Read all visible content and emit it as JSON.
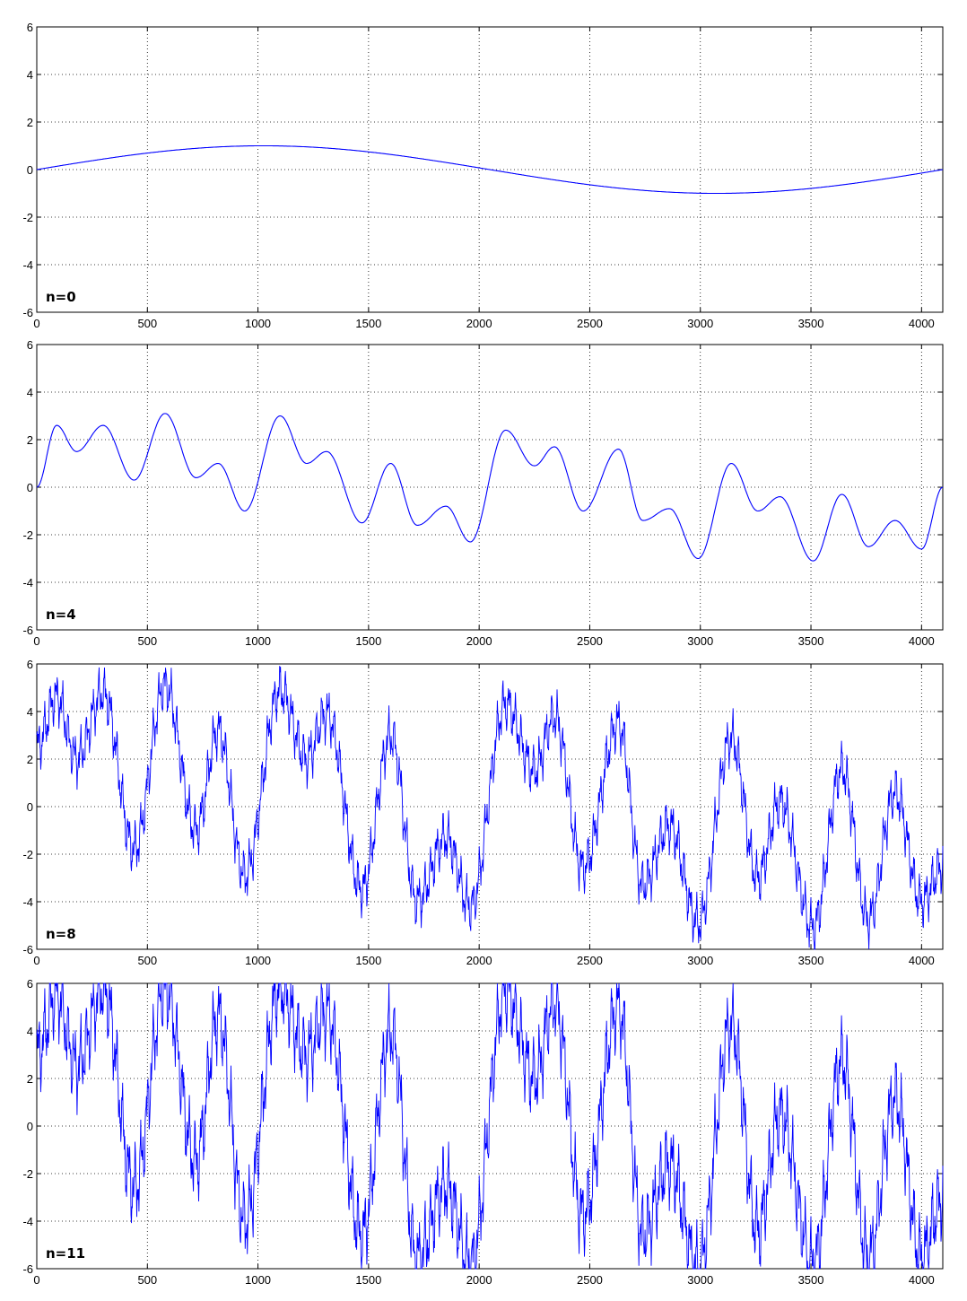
{
  "colors": {
    "series": "#0000ff",
    "axes": "#000000",
    "grid": "#000000",
    "background": "#ffffff"
  },
  "chart_data": [
    {
      "type": "line",
      "label": "n=0",
      "xlim": [
        0,
        4096
      ],
      "ylim": [
        -6,
        6
      ],
      "xticks": [
        0,
        500,
        1000,
        1500,
        2000,
        2500,
        3000,
        3500,
        4000
      ],
      "yticks": [
        -6,
        -4,
        -2,
        0,
        2,
        4,
        6
      ],
      "grid": true,
      "series": [
        {
          "x": [
            0,
            256,
            512,
            768,
            1024,
            1280,
            1536,
            1792,
            2048,
            2304,
            2560,
            2816,
            3072,
            3328,
            3584,
            3840,
            4096
          ],
          "y": [
            0,
            0.38,
            0.71,
            0.92,
            1.0,
            0.92,
            0.71,
            0.38,
            0,
            -0.38,
            -0.71,
            -0.92,
            -1.0,
            -0.92,
            -0.71,
            -0.38,
            0
          ]
        }
      ]
    },
    {
      "type": "line",
      "label": "n=4",
      "xlim": [
        0,
        4096
      ],
      "ylim": [
        -6,
        6
      ],
      "xticks": [
        0,
        500,
        1000,
        1500,
        2000,
        2500,
        3000,
        3500,
        4000
      ],
      "yticks": [
        -6,
        -4,
        -2,
        0,
        2,
        4,
        6
      ],
      "grid": true,
      "series": [
        {
          "x": [
            0,
            90,
            180,
            300,
            440,
            580,
            720,
            820,
            940,
            1100,
            1220,
            1310,
            1470,
            1600,
            1720,
            1850,
            1960,
            2120,
            2250,
            2340,
            2470,
            2630,
            2740,
            2860,
            2990,
            3140,
            3260,
            3360,
            3510,
            3640,
            3760,
            3880,
            4000,
            4096
          ],
          "y": [
            0,
            2.6,
            1.5,
            2.6,
            0.3,
            3.1,
            0.4,
            1.0,
            -1.0,
            3.0,
            1.0,
            1.5,
            -1.5,
            1.0,
            -1.6,
            -0.8,
            -2.3,
            2.4,
            0.9,
            1.7,
            -1.0,
            1.6,
            -1.4,
            -0.9,
            -3.0,
            1.0,
            -1.0,
            -0.4,
            -3.1,
            -0.3,
            -2.5,
            -1.4,
            -2.6,
            0
          ]
        }
      ]
    },
    {
      "type": "line",
      "label": "n=8",
      "xlim": [
        0,
        4096
      ],
      "ylim": [
        -6,
        6
      ],
      "xticks": [
        0,
        500,
        1000,
        1500,
        2000,
        2500,
        3000,
        3500,
        4000
      ],
      "yticks": [
        -6,
        -4,
        -2,
        0,
        2,
        4,
        6
      ],
      "grid": true,
      "series": [
        {
          "x": [
            0,
            90,
            180,
            300,
            440,
            580,
            720,
            820,
            940,
            1100,
            1220,
            1310,
            1470,
            1600,
            1720,
            1850,
            1960,
            2120,
            2250,
            2340,
            2470,
            2630,
            2740,
            2860,
            2990,
            3140,
            3260,
            3360,
            3510,
            3640,
            3760,
            3880,
            4000,
            4096
          ],
          "y": [
            2.5,
            4.6,
            2.0,
            4.8,
            -1.8,
            5.1,
            -1.0,
            3.2,
            -2.9,
            4.9,
            2.0,
            3.9,
            -3.5,
            3.0,
            -4.0,
            -1.3,
            -4.2,
            4.3,
            1.5,
            3.8,
            -2.6,
            3.5,
            -3.3,
            -0.8,
            -4.9,
            2.9,
            -3.0,
            0.2,
            -5.1,
            1.6,
            -4.8,
            0.6,
            -4.0,
            -2.5
          ]
        }
      ]
    },
    {
      "type": "line",
      "label": "n=11",
      "xlim": [
        0,
        4096
      ],
      "ylim": [
        -6,
        6
      ],
      "xticks": [
        0,
        500,
        1000,
        1500,
        2000,
        2500,
        3000,
        3500,
        4000
      ],
      "yticks": [
        -6,
        -4,
        -2,
        0,
        2,
        4,
        6
      ],
      "grid": true,
      "series": [
        {
          "x": [
            0,
            90,
            180,
            300,
            440,
            580,
            720,
            820,
            940,
            1100,
            1220,
            1310,
            1470,
            1600,
            1720,
            1850,
            1960,
            2120,
            2250,
            2340,
            2470,
            2630,
            2740,
            2860,
            2990,
            3140,
            3260,
            3360,
            3510,
            3640,
            3760,
            3880,
            4000,
            4096
          ],
          "y": [
            3.0,
            5.5,
            2.5,
            5.8,
            -2.6,
            5.8,
            -1.5,
            4.6,
            -4.0,
            5.8,
            3.0,
            4.8,
            -4.6,
            4.0,
            -5.6,
            -2.5,
            -5.8,
            5.7,
            2.0,
            5.2,
            -3.8,
            5.0,
            -4.5,
            -1.6,
            -6.0,
            4.3,
            -4.4,
            0.5,
            -5.8,
            2.8,
            -5.6,
            1.2,
            -5.5,
            -3.0
          ]
        }
      ]
    }
  ]
}
